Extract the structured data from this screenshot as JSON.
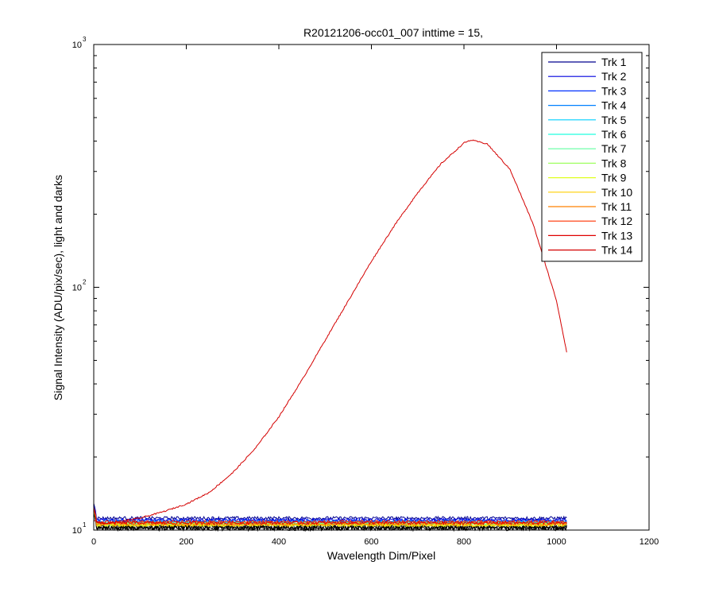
{
  "chart_data": {
    "type": "line",
    "title": "R20121206-occ01_007 inttime = 15,",
    "xlabel": "Wavelength Dim/Pixel",
    "ylabel": "Signal Intensity (ADU/pix/sec), light and darks",
    "xlim": [
      0,
      1200
    ],
    "ylim": [
      10,
      1000
    ],
    "yscale": "log",
    "grid": false,
    "legend_position": "top-right",
    "x_ticks": [
      "0",
      "200",
      "400",
      "600",
      "800",
      "1000",
      "1200"
    ],
    "y_ticks": [
      {
        "base": "10",
        "exp": "1"
      },
      {
        "base": "10",
        "exp": "2"
      },
      {
        "base": "10",
        "exp": "3"
      }
    ],
    "x_range_data": [
      0,
      1023
    ],
    "series": [
      {
        "name": "Trk 1",
        "color": "#00008f",
        "level": 11.2
      },
      {
        "name": "Trk 2",
        "color": "#0000df",
        "level": 11.0
      },
      {
        "name": "Trk 3",
        "color": "#0030ff",
        "level": 10.9
      },
      {
        "name": "Trk 4",
        "color": "#0080ff",
        "level": 10.8
      },
      {
        "name": "Trk 5",
        "color": "#00cfff",
        "level": 10.7
      },
      {
        "name": "Trk 6",
        "color": "#20ffdf",
        "level": 10.7
      },
      {
        "name": "Trk 7",
        "color": "#60ffa0",
        "level": 10.6
      },
      {
        "name": "Trk 8",
        "color": "#9fff60",
        "level": 10.6
      },
      {
        "name": "Trk 9",
        "color": "#dfff20",
        "level": 10.5
      },
      {
        "name": "Trk 10",
        "color": "#ffcf00",
        "level": 10.5
      },
      {
        "name": "Trk 11",
        "color": "#ff8000",
        "level": 10.6
      },
      {
        "name": "Trk 12",
        "color": "#ff3000",
        "level": 10.8
      },
      {
        "name": "Trk 13",
        "color": "#df0000",
        "level": 10.7
      },
      {
        "name": "Trk 14",
        "color": "#d40000",
        "x": [
          0,
          20,
          50,
          100,
          150,
          200,
          250,
          300,
          350,
          400,
          450,
          500,
          550,
          600,
          650,
          700,
          750,
          800,
          815,
          850,
          900,
          950,
          1000,
          1023
        ],
        "values": [
          11.0,
          10.6,
          10.8,
          11.2,
          11.9,
          12.8,
          14.3,
          17.2,
          21.8,
          29.3,
          41.5,
          60.5,
          88,
          128,
          180,
          245,
          322,
          393,
          404,
          390,
          305,
          181,
          88,
          53
        ]
      }
    ],
    "dark_series_color": "#000000",
    "dark_level": 10.3
  }
}
